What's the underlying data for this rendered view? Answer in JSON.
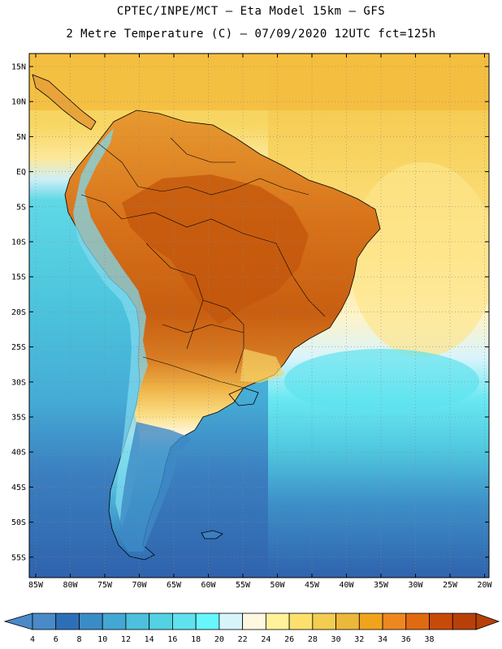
{
  "header": {
    "line1": "CPTEC/INPE/MCT –  Eta Model 15km – GFS",
    "line2": "2 Metre Temperature (C) – 07/09/2020 12UTC fct=125h"
  },
  "axes": {
    "lat_labels": [
      "15N",
      "10N",
      "5N",
      "EQ",
      "5S",
      "10S",
      "15S",
      "20S",
      "25S",
      "30S",
      "35S",
      "40S",
      "45S",
      "50S",
      "55S"
    ],
    "lon_labels": [
      "85W",
      "80W",
      "75W",
      "70W",
      "65W",
      "60W",
      "55W",
      "50W",
      "45W",
      "40W",
      "35W",
      "30W",
      "25W",
      "20W"
    ]
  },
  "colorbar": {
    "labels": [
      "4",
      "6",
      "8",
      "10",
      "12",
      "14",
      "16",
      "18",
      "20",
      "22",
      "24",
      "26",
      "28",
      "30",
      "32",
      "34",
      "36",
      "38"
    ],
    "colors": [
      "#4a8ac8",
      "#2c6fb8",
      "#3a8cc6",
      "#43a7d4",
      "#4cc0dc",
      "#52d2e2",
      "#5ee2ee",
      "#66f6fb",
      "#d5f5fb",
      "#fff8e0",
      "#fff29a",
      "#fde06c",
      "#f3cd50",
      "#ecb83a",
      "#f2a31c",
      "#ee8720",
      "#e06a12",
      "#c84a08",
      "#b84008"
    ],
    "left_arrow_color": "#4a8ac8",
    "right_arrow_color": "#b84008"
  }
}
